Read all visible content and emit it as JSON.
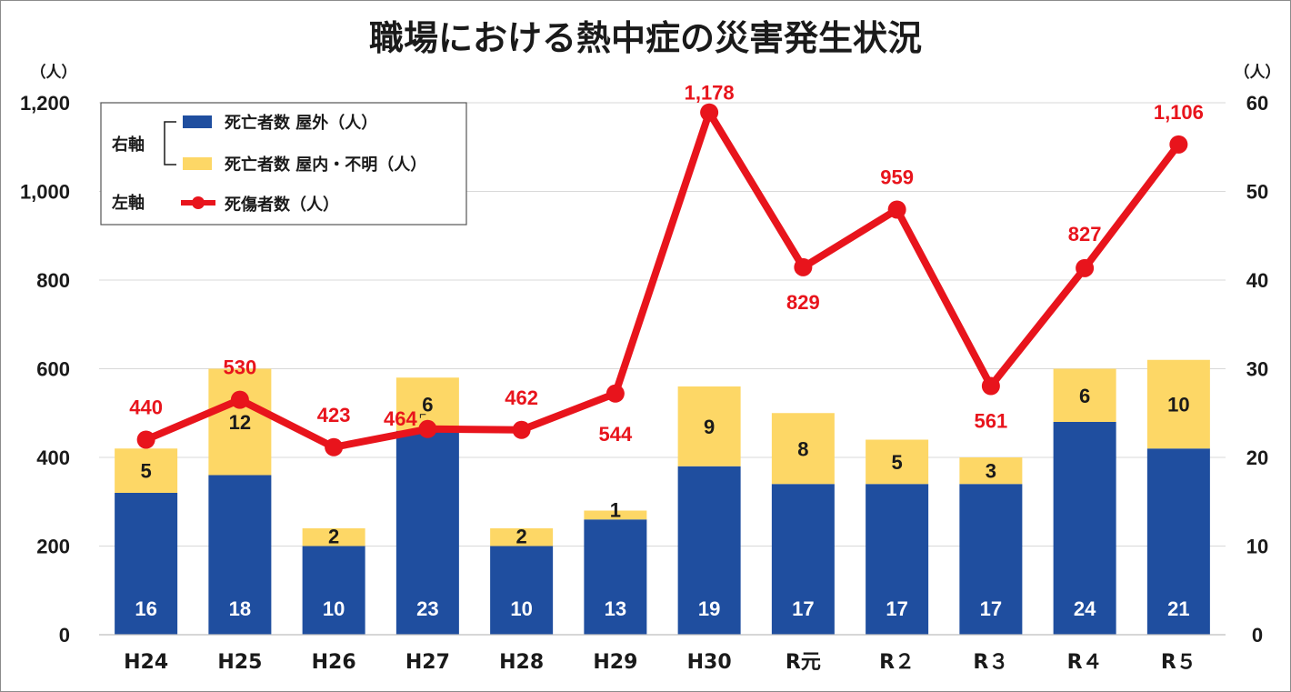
{
  "chart_data": {
    "type": "bar",
    "title": "職場における熱中症の災害発生状況",
    "categories": [
      "H24",
      "H25",
      "H26",
      "H27",
      "H28",
      "H29",
      "H30",
      "R元",
      "R2",
      "R3",
      "R4",
      "R5"
    ],
    "category_display": [
      "H24",
      "H25",
      "H26",
      "H27",
      "H28",
      "H29",
      "H30",
      "R元",
      "R２",
      "R３",
      "R４",
      "R５"
    ],
    "left_axis": {
      "unit_label": "（人）",
      "ylim": [
        0,
        1200
      ],
      "ticks": [
        "0",
        "200",
        "400",
        "600",
        "800",
        "1,000",
        "1,200"
      ]
    },
    "right_axis": {
      "unit_label": "（人）",
      "ylim": [
        0,
        60
      ],
      "ticks": [
        "0",
        "10",
        "20",
        "30",
        "40",
        "50",
        "60"
      ]
    },
    "series": [
      {
        "name": "死亡者数 屋外（人）",
        "type": "stacked-bar",
        "axis": "right",
        "color": "#1f4e9f",
        "values": [
          16,
          18,
          10,
          23,
          10,
          13,
          19,
          17,
          17,
          17,
          24,
          21
        ],
        "labels": [
          "16",
          "18",
          "10",
          "23",
          "10",
          "13",
          "19",
          "17",
          "17",
          "17",
          "24",
          "21"
        ]
      },
      {
        "name": "死亡者数 屋内・不明（人）",
        "type": "stacked-bar",
        "axis": "right",
        "color": "#fdd766",
        "values": [
          5,
          12,
          2,
          6,
          2,
          1,
          9,
          8,
          5,
          3,
          6,
          10
        ],
        "labels": [
          "5",
          "12",
          "2",
          "6",
          "2",
          "1",
          "9",
          "8",
          "5",
          "3",
          "6",
          "10"
        ]
      },
      {
        "name": "死傷者数（人）",
        "type": "line",
        "axis": "left",
        "color": "#e8141c",
        "values": [
          440,
          530,
          423,
          464,
          462,
          544,
          1178,
          829,
          959,
          561,
          827,
          1106
        ],
        "labels": [
          "440",
          "530",
          "423",
          "464",
          "462",
          "544",
          "1,178",
          "829",
          "959",
          "561",
          "827",
          "1,106"
        ]
      }
    ],
    "legend": {
      "placement": "top-left",
      "group_right": "右軸",
      "group_left": "左軸"
    },
    "grid": true
  }
}
